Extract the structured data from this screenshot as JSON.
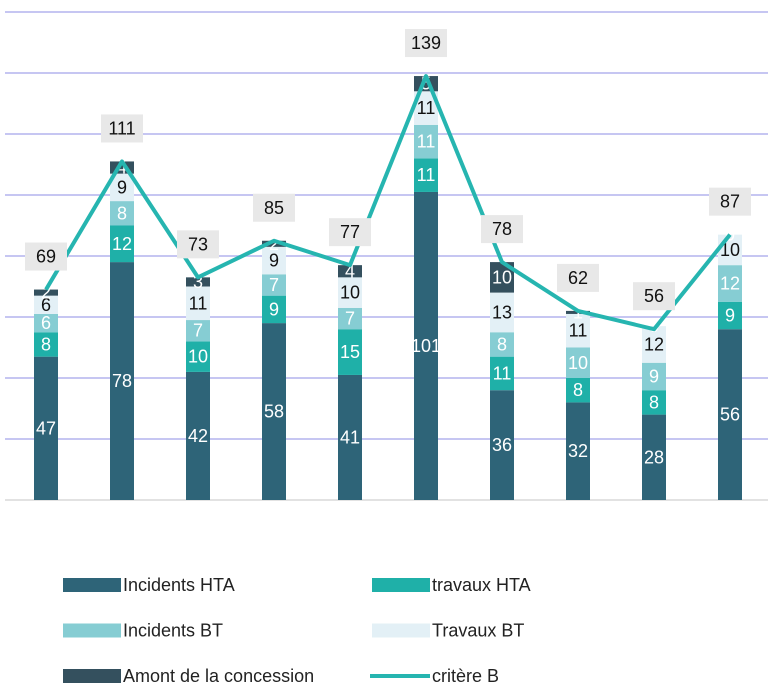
{
  "chart_data": {
    "type": "bar",
    "stacked": true,
    "categories": [
      null,
      null,
      null,
      null,
      null,
      null,
      null,
      null,
      null,
      null
    ],
    "ylim": [
      0,
      160
    ],
    "yticks": [
      0,
      20,
      40,
      60,
      80,
      100,
      120,
      140,
      160
    ],
    "grid": true,
    "series": [
      {
        "name": "Incidents HTA",
        "color": "#2e6478",
        "values": [
          47,
          78,
          42,
          58,
          41,
          101,
          36,
          32,
          28,
          56
        ]
      },
      {
        "name": "travaux HTA",
        "color": "#1fb0a8",
        "values": [
          8,
          12,
          10,
          9,
          15,
          11,
          11,
          8,
          8,
          9
        ]
      },
      {
        "name": "Incidents BT",
        "color": "#86cdd3",
        "values": [
          6,
          8,
          7,
          7,
          7,
          11,
          8,
          10,
          9,
          12
        ]
      },
      {
        "name": "Travaux BT",
        "color": "#e3f0f6",
        "values": [
          6,
          9,
          11,
          9,
          10,
          11,
          13,
          11,
          12,
          10
        ]
      },
      {
        "name": "Amont de la concession",
        "color": "#34505e",
        "values": [
          2,
          4,
          3,
          2,
          4,
          5,
          10,
          1,
          0,
          0
        ]
      },
      {
        "name": "critère B",
        "color": "#26b5b0",
        "type": "line",
        "values": [
          69,
          111,
          73,
          85,
          77,
          139,
          78,
          62,
          56,
          87
        ]
      }
    ]
  }
}
